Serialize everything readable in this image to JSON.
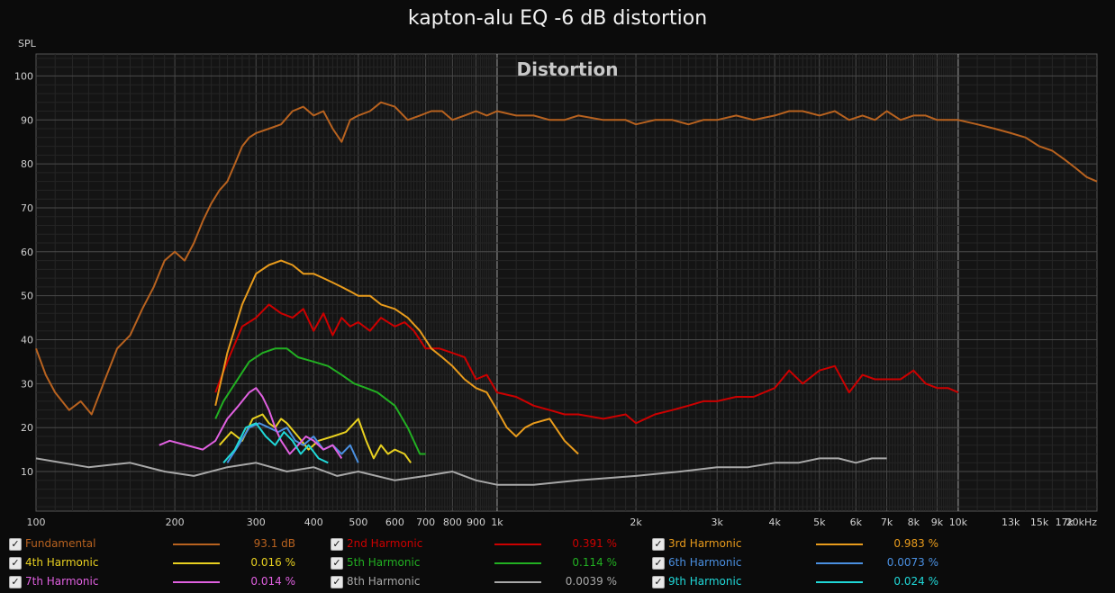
{
  "title": "kapton-alu EQ -6 dB distortion",
  "chart_data": {
    "type": "line",
    "title": "kapton-alu EQ -6 dB distortion",
    "subtitle": "Distortion",
    "ylabel": "SPL",
    "xlabel": "",
    "xscale": "log",
    "xlim": [
      100,
      20000
    ],
    "ylim": [
      1,
      105
    ],
    "grid": true,
    "legend_position": "bottom",
    "x_ticks": [
      {
        "v": 100,
        "label": "100"
      },
      {
        "v": 200,
        "label": "200"
      },
      {
        "v": 300,
        "label": "300"
      },
      {
        "v": 400,
        "label": "400"
      },
      {
        "v": 500,
        "label": "500"
      },
      {
        "v": 600,
        "label": "600"
      },
      {
        "v": 700,
        "label": "700"
      },
      {
        "v": 800,
        "label": "800"
      },
      {
        "v": 900,
        "label": "900"
      },
      {
        "v": 1000,
        "label": "1k"
      },
      {
        "v": 2000,
        "label": "2k"
      },
      {
        "v": 3000,
        "label": "3k"
      },
      {
        "v": 4000,
        "label": "4k"
      },
      {
        "v": 5000,
        "label": "5k"
      },
      {
        "v": 6000,
        "label": "6k"
      },
      {
        "v": 7000,
        "label": "7k"
      },
      {
        "v": 8000,
        "label": "8k"
      },
      {
        "v": 9000,
        "label": "9k"
      },
      {
        "v": 10000,
        "label": "10k"
      },
      {
        "v": 13000,
        "label": "13k"
      },
      {
        "v": 15000,
        "label": "15k"
      },
      {
        "v": 17000,
        "label": "17k"
      },
      {
        "v": 20000,
        "label": "20kHz"
      }
    ],
    "y_ticks": [
      {
        "v": 10,
        "label": "10"
      },
      {
        "v": 20,
        "label": "20"
      },
      {
        "v": 30,
        "label": "30"
      },
      {
        "v": 40,
        "label": "40"
      },
      {
        "v": 50,
        "label": "50"
      },
      {
        "v": 60,
        "label": "60"
      },
      {
        "v": 70,
        "label": "70"
      },
      {
        "v": 80,
        "label": "80"
      },
      {
        "v": 90,
        "label": "90"
      },
      {
        "v": 100,
        "label": "100"
      }
    ],
    "series": [
      {
        "name": "Fundamental",
        "color": "#b8621f",
        "value": "93.1 dB",
        "x": [
          100,
          105,
          110,
          118,
          125,
          132,
          140,
          150,
          160,
          170,
          180,
          190,
          200,
          210,
          220,
          230,
          240,
          250,
          260,
          270,
          280,
          290,
          300,
          320,
          340,
          360,
          380,
          400,
          420,
          440,
          460,
          480,
          500,
          530,
          560,
          600,
          640,
          680,
          720,
          760,
          800,
          850,
          900,
          950,
          1000,
          1100,
          1200,
          1300,
          1400,
          1500,
          1700,
          1900,
          2000,
          2200,
          2400,
          2600,
          2800,
          3000,
          3300,
          3600,
          4000,
          4300,
          4600,
          5000,
          5400,
          5800,
          6200,
          6600,
          7000,
          7500,
          8000,
          8500,
          9000,
          9500,
          10000,
          11000,
          12000,
          13000,
          14000,
          15000,
          16000,
          17000,
          18000,
          19000,
          20000
        ],
        "y": [
          38,
          32,
          28,
          24,
          26,
          23,
          30,
          38,
          41,
          47,
          52,
          58,
          60,
          58,
          62,
          67,
          71,
          74,
          76,
          80,
          84,
          86,
          87,
          88,
          89,
          92,
          93,
          91,
          92,
          88,
          85,
          90,
          91,
          92,
          94,
          93,
          90,
          91,
          92,
          92,
          90,
          91,
          92,
          91,
          92,
          91,
          91,
          90,
          90,
          91,
          90,
          90,
          89,
          90,
          90,
          89,
          90,
          90,
          91,
          90,
          91,
          92,
          92,
          91,
          92,
          90,
          91,
          90,
          92,
          90,
          91,
          91,
          90,
          90,
          90,
          89,
          88,
          87,
          86,
          84,
          83,
          81,
          79,
          77,
          76
        ]
      },
      {
        "name": "2nd Harmonic",
        "color": "#cc0000",
        "value": "0.391 %",
        "x": [
          245,
          260,
          280,
          300,
          320,
          340,
          360,
          380,
          400,
          420,
          440,
          460,
          480,
          500,
          530,
          560,
          600,
          630,
          660,
          700,
          750,
          800,
          850,
          900,
          950,
          1000,
          1100,
          1200,
          1300,
          1400,
          1500,
          1700,
          1900,
          2000,
          2200,
          2400,
          2600,
          2800,
          3000,
          3300,
          3600,
          4000,
          4300,
          4600,
          5000,
          5400,
          5800,
          6200,
          6600,
          7000,
          7500,
          8000,
          8500,
          9000,
          9500,
          10000
        ],
        "y": [
          28,
          35,
          43,
          45,
          48,
          46,
          45,
          47,
          42,
          46,
          41,
          45,
          43,
          44,
          42,
          45,
          43,
          44,
          42,
          38,
          38,
          37,
          36,
          31,
          32,
          28,
          27,
          25,
          24,
          23,
          23,
          22,
          23,
          21,
          23,
          24,
          25,
          26,
          26,
          27,
          27,
          29,
          33,
          30,
          33,
          34,
          28,
          32,
          31,
          31,
          31,
          33,
          30,
          29,
          29,
          28
        ]
      },
      {
        "name": "3rd Harmonic",
        "color": "#e89b1c",
        "value": "0.983 %",
        "x": [
          245,
          260,
          280,
          300,
          320,
          340,
          360,
          380,
          400,
          420,
          440,
          460,
          480,
          500,
          530,
          560,
          600,
          640,
          680,
          720,
          760,
          800,
          850,
          900,
          950,
          1000,
          1050,
          1100,
          1150,
          1200,
          1300,
          1400,
          1500
        ],
        "y": [
          25,
          37,
          48,
          55,
          57,
          58,
          57,
          55,
          55,
          54,
          53,
          52,
          51,
          50,
          50,
          48,
          47,
          45,
          42,
          38,
          36,
          34,
          31,
          29,
          28,
          24,
          20,
          18,
          20,
          21,
          22,
          17,
          14
        ]
      },
      {
        "name": "4th Harmonic",
        "color": "#e8d020",
        "value": "0.016 %",
        "x": [
          250,
          265,
          280,
          295,
          310,
          320,
          330,
          340,
          350,
          370,
          390,
          410,
          440,
          470,
          500,
          520,
          540,
          560,
          580,
          600,
          630,
          650
        ],
        "y": [
          16,
          19,
          17,
          22,
          23,
          21,
          20,
          22,
          21,
          18,
          15,
          17,
          18,
          19,
          22,
          17,
          13,
          16,
          14,
          15,
          14,
          12
        ]
      },
      {
        "name": "5th Harmonic",
        "color": "#22b022",
        "value": "0.114 %",
        "x": [
          245,
          255,
          270,
          290,
          310,
          330,
          350,
          370,
          400,
          430,
          460,
          490,
          520,
          550,
          600,
          640,
          680,
          700
        ],
        "y": [
          22,
          26,
          30,
          35,
          37,
          38,
          38,
          36,
          35,
          34,
          32,
          30,
          29,
          28,
          25,
          20,
          14,
          14
        ]
      },
      {
        "name": "6th Harmonic",
        "color": "#4a8fe0",
        "value": "0.0073 %",
        "x": [
          260,
          275,
          290,
          305,
          320,
          335,
          350,
          365,
          380,
          400,
          420,
          440,
          460,
          480,
          500
        ],
        "y": [
          12,
          16,
          20,
          21,
          20,
          19,
          20,
          17,
          16,
          18,
          15,
          16,
          14,
          16,
          12
        ]
      },
      {
        "name": "7th Harmonic",
        "color": "#e060e0",
        "value": "0.014 %",
        "x": [
          185,
          195,
          230,
          245,
          260,
          275,
          290,
          300,
          310,
          320,
          330,
          340,
          355,
          370,
          385,
          400,
          420,
          440,
          460
        ],
        "y": [
          16,
          17,
          15,
          17,
          22,
          25,
          28,
          29,
          27,
          24,
          20,
          17,
          14,
          16,
          18,
          17,
          15,
          16,
          13
        ]
      },
      {
        "name": "8th Harmonic",
        "color": "#a8a8a8",
        "value": "0.0039 %",
        "x": [
          100,
          130,
          160,
          190,
          220,
          260,
          300,
          350,
          400,
          450,
          500,
          600,
          700,
          800,
          900,
          1000,
          1200,
          1500,
          2000,
          2500,
          3000,
          3500,
          4000,
          4500,
          5000,
          5500,
          6000,
          6500,
          7000
        ],
        "y": [
          13,
          11,
          12,
          10,
          9,
          11,
          12,
          10,
          11,
          9,
          10,
          8,
          9,
          10,
          8,
          7,
          7,
          8,
          9,
          10,
          11,
          11,
          12,
          12,
          13,
          13,
          12,
          13,
          13
        ]
      },
      {
        "name": "9th Harmonic",
        "color": "#20d8d8",
        "value": "0.024 %",
        "x": [
          255,
          270,
          285,
          300,
          315,
          330,
          345,
          360,
          375,
          390,
          410,
          430
        ],
        "y": [
          12,
          15,
          20,
          21,
          18,
          16,
          19,
          17,
          14,
          16,
          13,
          12
        ]
      }
    ]
  },
  "legend": [
    {
      "label": "Fundamental",
      "value": "93.1 dB",
      "color": "#b8621f",
      "checked": "✓"
    },
    {
      "label": "2nd Harmonic",
      "value": "0.391 %",
      "color": "#cc0000",
      "checked": "✓"
    },
    {
      "label": "3rd Harmonic",
      "value": "0.983 %",
      "color": "#e89b1c",
      "checked": "✓"
    },
    {
      "label": "4th Harmonic",
      "value": "0.016 %",
      "color": "#e8d020",
      "checked": "✓"
    },
    {
      "label": "5th Harmonic",
      "value": "0.114 %",
      "color": "#22b022",
      "checked": "✓"
    },
    {
      "label": "6th Harmonic",
      "value": "0.0073 %",
      "color": "#4a8fe0",
      "checked": "✓"
    },
    {
      "label": "7th Harmonic",
      "value": "0.014 %",
      "color": "#e060e0",
      "checked": "✓"
    },
    {
      "label": "8th Harmonic",
      "value": "0.0039 %",
      "color": "#a8a8a8",
      "checked": "✓"
    },
    {
      "label": "9th Harmonic",
      "value": "0.024 %",
      "color": "#20d8d8",
      "checked": "✓"
    }
  ]
}
